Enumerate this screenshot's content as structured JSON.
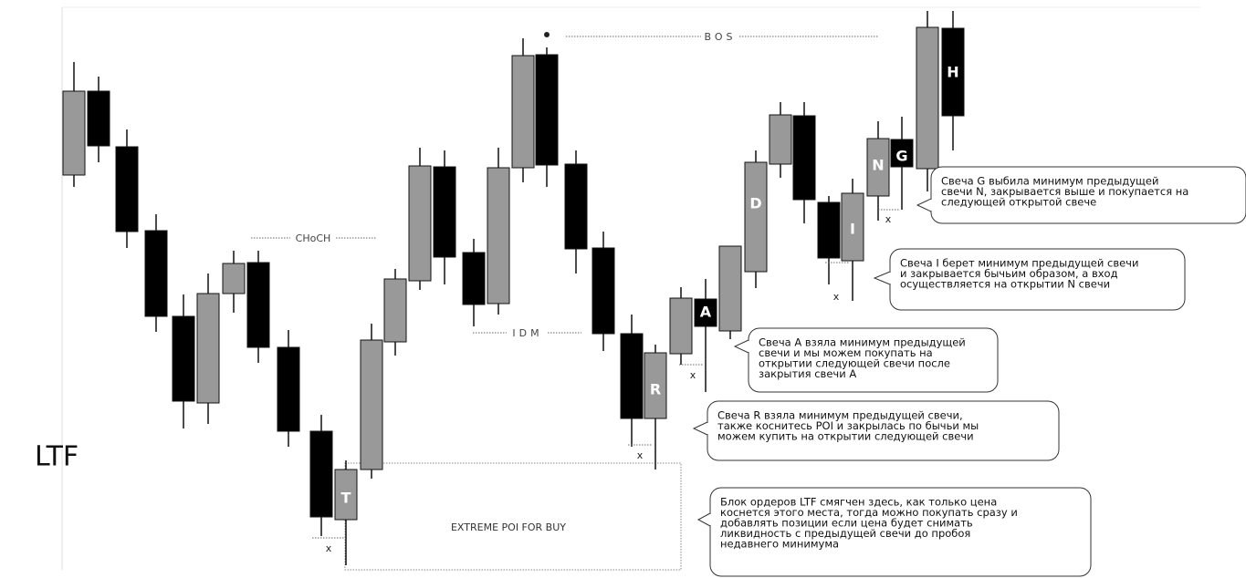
{
  "side_label": "LTF",
  "levels": {
    "choch": "CHoCH",
    "bos": "BOS",
    "idm": "IDM"
  },
  "zone_label": "EXTREME POI FOR BUY",
  "candle_labels": [
    "T",
    "R",
    "A",
    "D",
    "I",
    "N",
    "G",
    "H"
  ],
  "sweep_marks": [
    "x",
    "x",
    "x",
    "x",
    "x"
  ],
  "callouts": [
    {
      "lines": [
        "Свеча G  выбила  минимум предыдущей",
        "свечи N, закрывается выше и покупается на",
        "следующей открытой свече"
      ]
    },
    {
      "lines": [
        "Свеча I берет минимум предыдущей свечи",
        "и закрывается бычьим образом, а вход",
        "осуществляется на открытии N свечи"
      ]
    },
    {
      "lines": [
        "Свеча A взяла минимум предыдущей",
        "свечи и мы можем покупать на",
        "открытии следующей свечи после",
        "закрытия свечи A"
      ]
    },
    {
      "lines": [
        "Свеча R взяла  минимум предыдущей свечи,",
        "также коснитесь POI и закрылась по  бычьи мы",
        "можем купить на открытии следующей свечи"
      ]
    },
    {
      "lines": [
        "Блок ордеров LTF смягчен здесь, как только цена",
        "коснется этого места, тогда можно покупать сразу и",
        "добавлять позиции  если цена будет снимать",
        "ликвидность с предыдущей свечи до пробоя",
        "недавнего минимума"
      ]
    }
  ]
}
